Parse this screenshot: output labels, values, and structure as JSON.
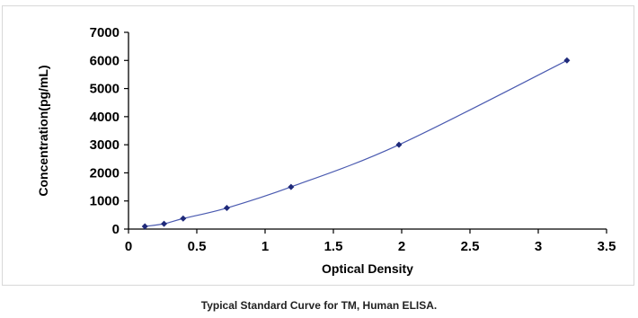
{
  "chart_data": {
    "type": "scatter",
    "title": "Typical Standard Curve for TM, Human ELISA.",
    "xlabel": "Optical Density",
    "ylabel": "Concentration(pg/mL)",
    "xlim": [
      0,
      3.5
    ],
    "ylim": [
      0,
      7000
    ],
    "xticks": [
      "0",
      "0.5",
      "1",
      "1.5",
      "2",
      "2.5",
      "3",
      "3.5"
    ],
    "yticks": [
      "0",
      "1000",
      "2000",
      "3000",
      "4000",
      "5000",
      "6000",
      "7000"
    ],
    "grid": false,
    "legend": "none",
    "trendline": true,
    "colors": {
      "series": "#1f2a7a",
      "line": "#4a5ab0",
      "axis": "#000000"
    },
    "points": [
      {
        "x": 0.12,
        "y": 94
      },
      {
        "x": 0.26,
        "y": 188
      },
      {
        "x": 0.4,
        "y": 375
      },
      {
        "x": 0.72,
        "y": 750
      },
      {
        "x": 1.19,
        "y": 1500
      },
      {
        "x": 1.98,
        "y": 3000
      },
      {
        "x": 3.21,
        "y": 6000
      }
    ]
  }
}
